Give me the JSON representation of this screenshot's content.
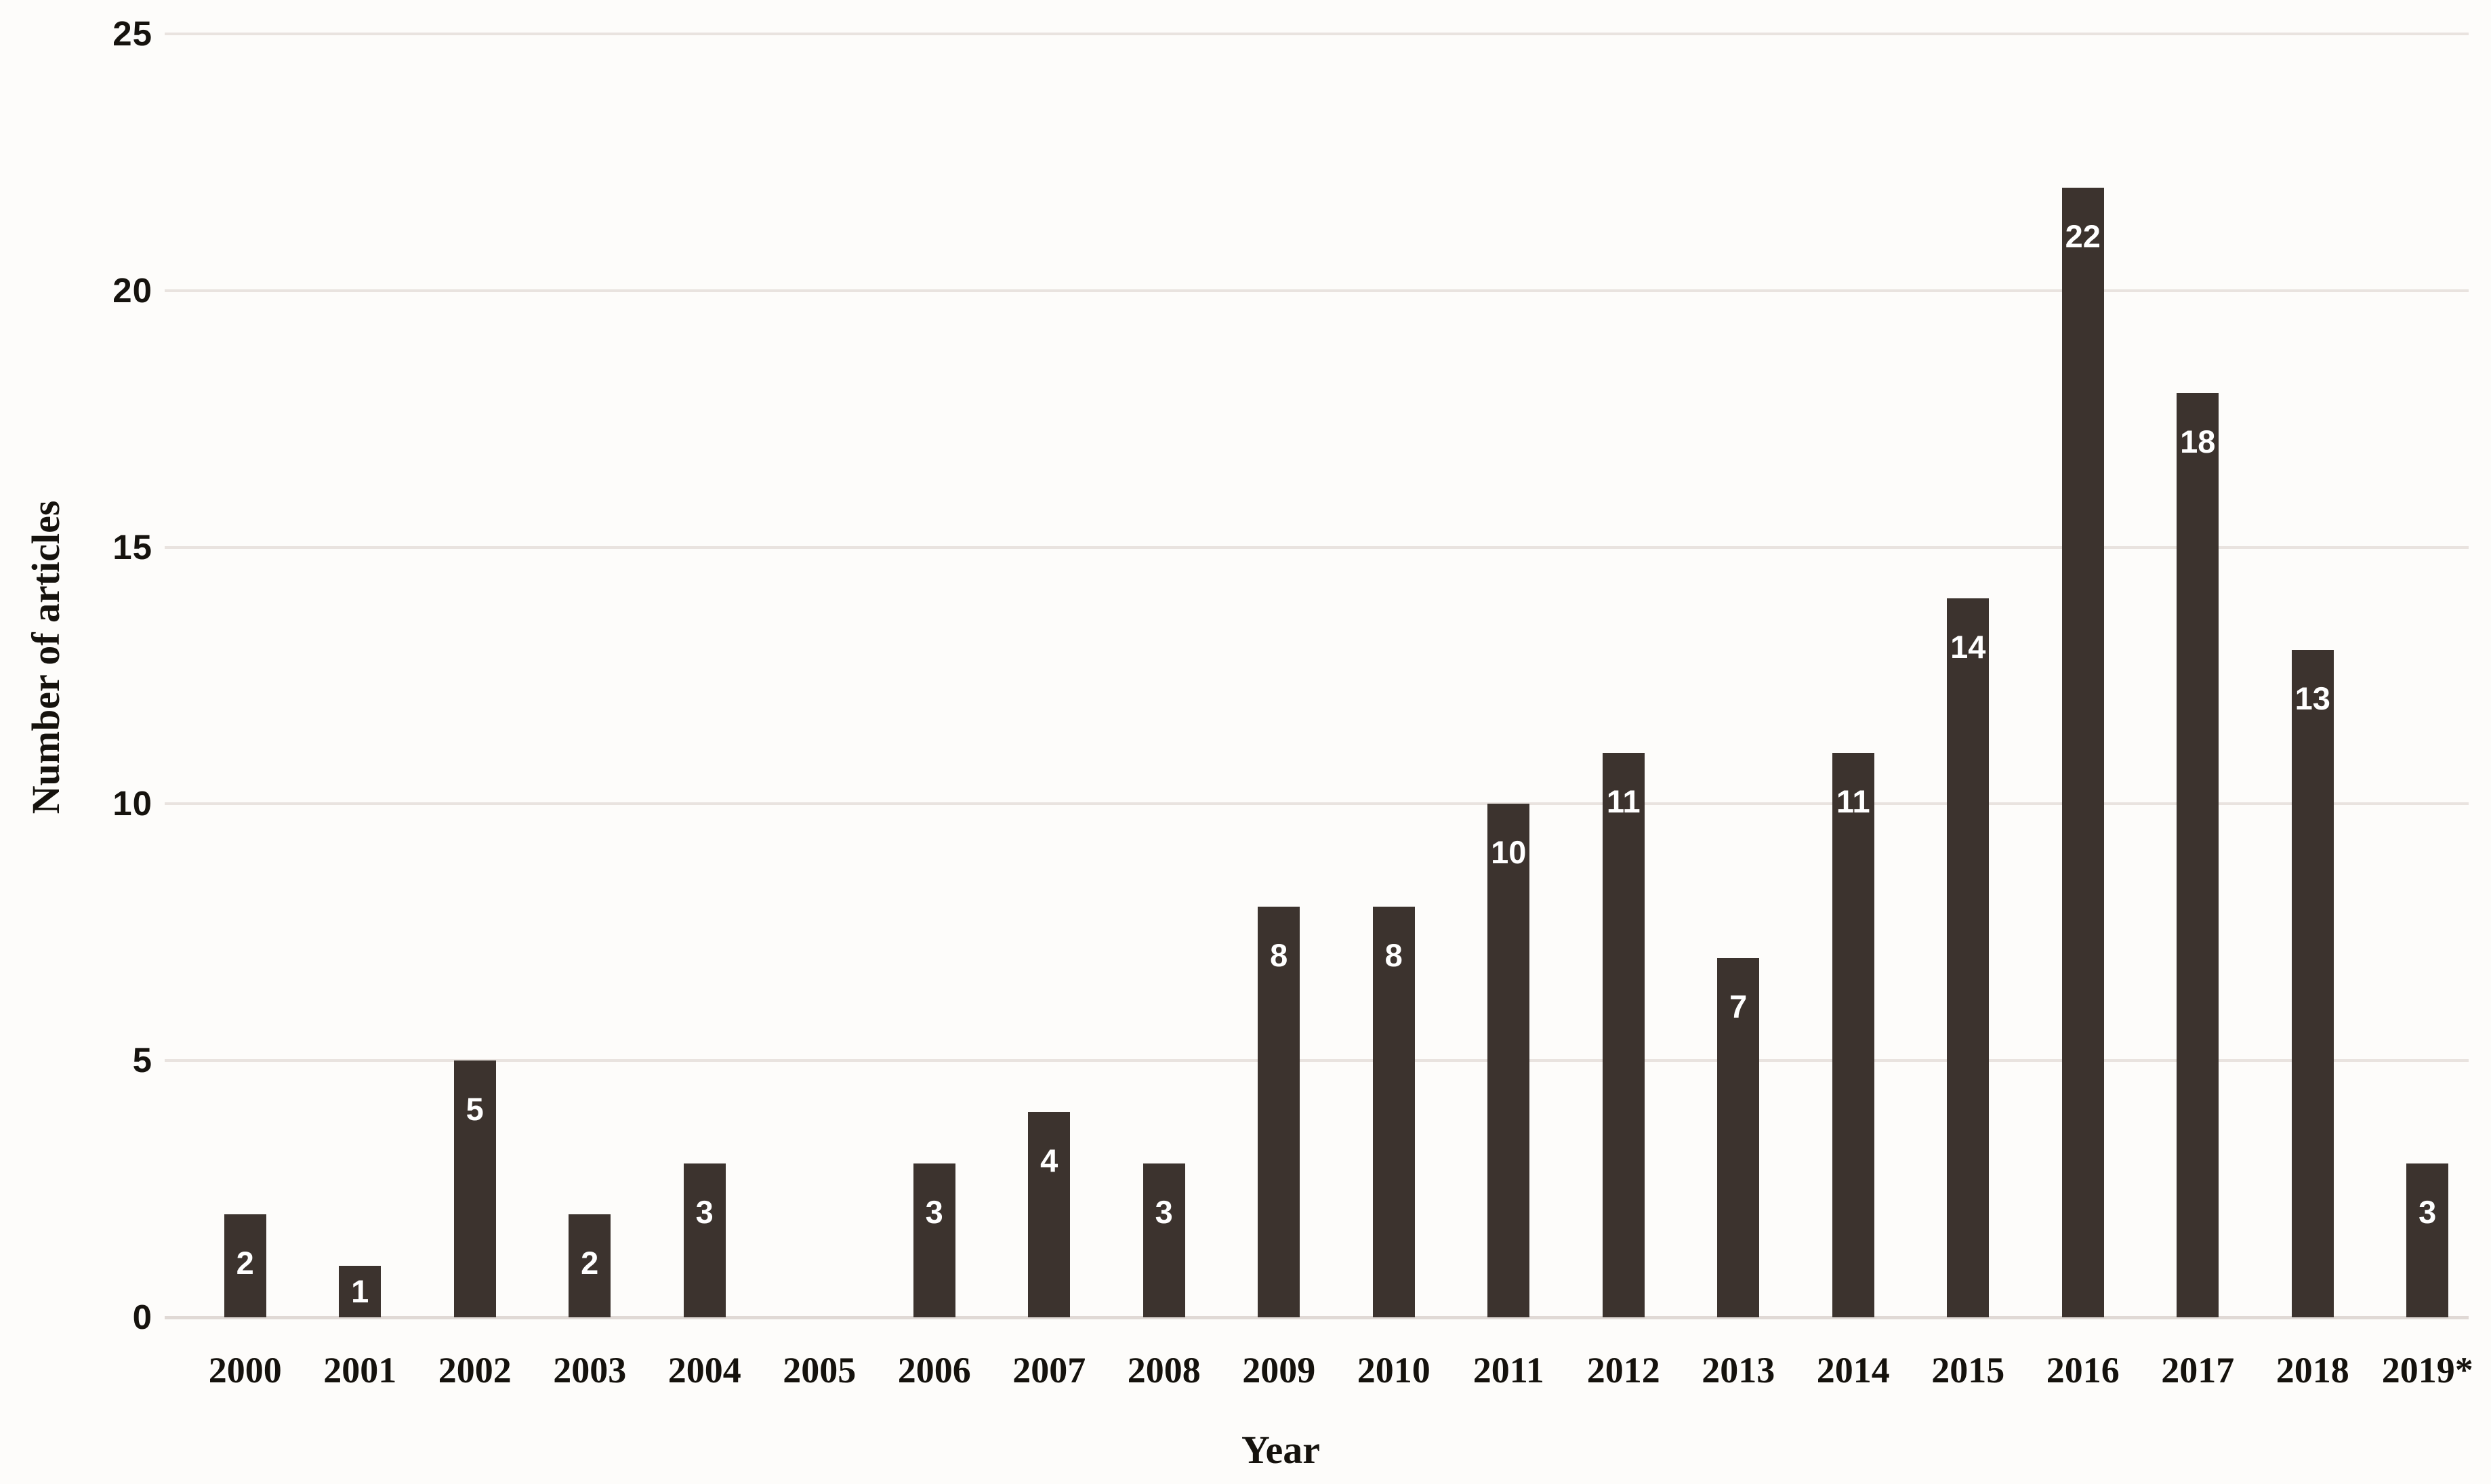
{
  "chart_data": {
    "type": "bar",
    "title": "",
    "xlabel": "Year",
    "ylabel": "Number of articles",
    "categories": [
      "2000",
      "2001",
      "2002",
      "2003",
      "2004",
      "2005",
      "2006",
      "2007",
      "2008",
      "2009",
      "2010",
      "2011",
      "2012",
      "2013",
      "2014",
      "2015",
      "2016",
      "2017",
      "2018",
      "2019*"
    ],
    "values": [
      2,
      1,
      5,
      2,
      3,
      0,
      3,
      4,
      3,
      8,
      8,
      10,
      11,
      7,
      11,
      14,
      22,
      18,
      13,
      3
    ],
    "yticks": [
      0,
      5,
      10,
      15,
      20,
      25
    ],
    "ylim": [
      0,
      25
    ],
    "grid": "horizontal-only",
    "legend": "none",
    "data_labels": "inside-end-white",
    "bar_color": "#3c332e",
    "data_label_color": "#ffffff",
    "gridline_color": "#e9e3df",
    "axis_line_color": "#e0d9d5",
    "background_color": "#fdfcfa",
    "text_color": "#15120d"
  }
}
